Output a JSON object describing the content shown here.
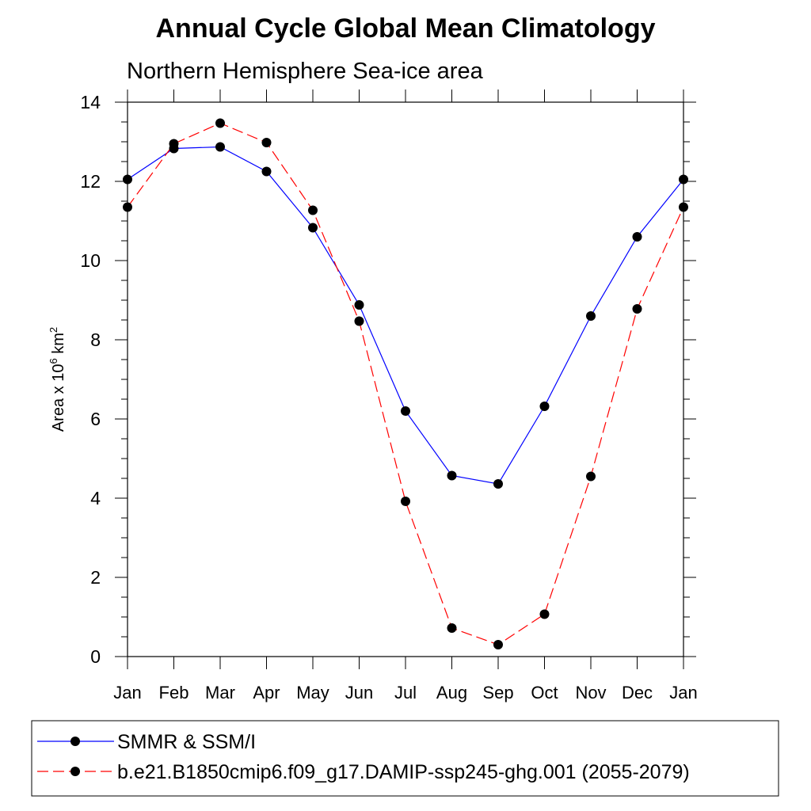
{
  "chart_data": {
    "type": "line",
    "title": "Annual Cycle Global Mean Climatology",
    "subtitle": "Northern Hemisphere Sea-ice area",
    "xlabel": "",
    "ylabel": "Area x 10",
    "ylabel_superscript": "6",
    "ylabel_unit": "km",
    "ylabel_unit_superscript": "2",
    "categories": [
      "Jan",
      "Feb",
      "Mar",
      "Apr",
      "May",
      "Jun",
      "Jul",
      "Aug",
      "Sep",
      "Oct",
      "Nov",
      "Dec",
      "Jan"
    ],
    "ylim": [
      0,
      14
    ],
    "yticks": [
      "0",
      "2",
      "4",
      "6",
      "8",
      "10",
      "12",
      "14"
    ],
    "series": [
      {
        "name": "SMMR & SSM/I",
        "color": "#0000ff",
        "dash": "solid",
        "values": [
          12.05,
          12.83,
          12.87,
          12.25,
          10.83,
          8.88,
          6.2,
          4.57,
          4.36,
          6.32,
          8.6,
          10.6,
          12.05
        ]
      },
      {
        "name": "b.e21.B1850cmip6.f09_g17.DAMIP-ssp245-ghg.001 (2055-2079)",
        "color": "#ff0000",
        "dash": "dashed",
        "values": [
          11.35,
          12.95,
          13.47,
          12.98,
          11.27,
          8.47,
          3.92,
          0.72,
          0.3,
          1.07,
          4.55,
          8.78,
          11.35
        ]
      }
    ],
    "marker": "filled-circle",
    "grid": false,
    "legend_position": "bottom"
  }
}
